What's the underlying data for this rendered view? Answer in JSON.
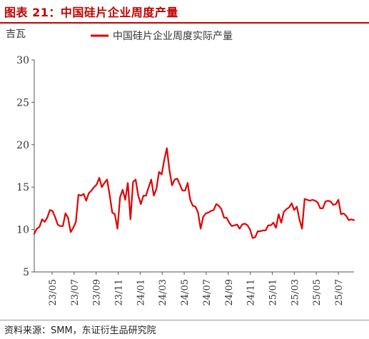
{
  "figure_title": "图表 21：中国硅片企业周度产量",
  "source_note": "资料来源：SMM，东证衍生品研究院",
  "colors": {
    "title": "#c00000",
    "series": "#e00000",
    "axis": "#555555"
  },
  "chart_data": {
    "type": "line",
    "title": "",
    "ylabel": "吉瓦",
    "xlabel": "",
    "ylim": [
      5,
      30
    ],
    "yticks": [
      5,
      10,
      15,
      20,
      25,
      30
    ],
    "x_tick_labels": [
      "23/05",
      "23/07",
      "23/09",
      "23/11",
      "24/01",
      "24/03",
      "24/05",
      "24/07",
      "24/09",
      "24/11",
      "25/01",
      "25/03",
      "25/05",
      "25/07"
    ],
    "legend_position": "top",
    "grid": false,
    "series": [
      {
        "name": "中国硅片企业周度实际产量",
        "color": "#e00000",
        "values": [
          9.5,
          10.1,
          10.3,
          11.2,
          10.9,
          11.4,
          12.3,
          12.2,
          11.5,
          10.6,
          10.4,
          10.4,
          11.9,
          11.4,
          9.7,
          10.2,
          10.9,
          14.1,
          14.0,
          14.2,
          13.4,
          14.3,
          14.6,
          15.0,
          15.3,
          16.1,
          15.0,
          15.5,
          15.9,
          14.1,
          12.0,
          11.8,
          10.1,
          13.8,
          14.7,
          13.5,
          15.5,
          11.2,
          15.6,
          15.9,
          14.0,
          13.0,
          14.0,
          14.0,
          15.0,
          15.9,
          14.0,
          14.8,
          16.8,
          16.5,
          18.2,
          19.6,
          17.0,
          15.2,
          15.9,
          16.0,
          15.3,
          14.6,
          14.6,
          15.5,
          13.5,
          12.8,
          12.7,
          12.0,
          10.1,
          11.5,
          11.9,
          12.0,
          12.2,
          12.3,
          13.0,
          12.8,
          12.4,
          11.4,
          11.4,
          10.8,
          10.4,
          10.5,
          10.6,
          10.1,
          10.6,
          10.7,
          10.5,
          10.0,
          9.0,
          9.1,
          9.8,
          9.8,
          9.9,
          9.9,
          10.5,
          10.5,
          10.8,
          10.2,
          11.8,
          10.8,
          12.1,
          12.4,
          12.6,
          13.1,
          12.3,
          12.7,
          11.2,
          10.1,
          13.6,
          13.5,
          13.4,
          13.5,
          13.4,
          13.2,
          12.5,
          12.5,
          13.3,
          13.4,
          13.3,
          12.9,
          13.0,
          13.5,
          11.8,
          11.9,
          11.6,
          11.1,
          11.2,
          11.1
        ]
      }
    ]
  }
}
